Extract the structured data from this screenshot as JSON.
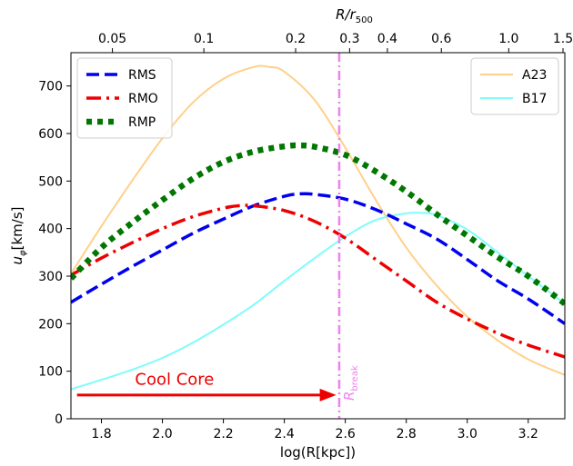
{
  "chart_data": {
    "type": "line",
    "xlabel": "log(R[kpc])",
    "ylabel": "u_φ[km/s]",
    "ylabel_main": "u",
    "ylabel_sub": "φ",
    "ylabel_unit": "[km/s]",
    "top_xlabel": "R/r_500",
    "top_xlabel_main": "R/r",
    "top_xlabel_sub": "500",
    "xlim": [
      1.7,
      3.32
    ],
    "ylim": [
      0,
      770
    ],
    "xticks": [
      1.8,
      2.0,
      2.2,
      2.4,
      2.6,
      2.8,
      3.0,
      3.2
    ],
    "xtick_labels": [
      "1.8",
      "2.0",
      "2.2",
      "2.4",
      "2.6",
      "2.8",
      "3.0",
      "3.2"
    ],
    "yticks": [
      0,
      100,
      200,
      300,
      400,
      500,
      600,
      700
    ],
    "ytick_labels": [
      "0",
      "100",
      "200",
      "300",
      "400",
      "500",
      "600",
      "700"
    ],
    "top_ticks": [
      {
        "label": "0.05",
        "x": 1.836
      },
      {
        "label": "0.1",
        "x": 2.136
      },
      {
        "label": "0.2",
        "x": 2.437
      },
      {
        "label": "0.3",
        "x": 2.614
      },
      {
        "label": "0.4",
        "x": 2.738
      },
      {
        "label": "0.6",
        "x": 2.915
      },
      {
        "label": "1.0",
        "x": 3.136
      },
      {
        "label": "1.5",
        "x": 3.314
      }
    ],
    "grid": false,
    "legend_left_position": "top-left",
    "legend_right_position": "top-right",
    "series": [
      {
        "name": "RMS",
        "color": "#0000ee",
        "style": "dashed",
        "group": "left",
        "x": [
          1.7,
          1.8,
          1.9,
          2.0,
          2.1,
          2.2,
          2.3,
          2.4,
          2.45,
          2.5,
          2.6,
          2.7,
          2.8,
          2.9,
          3.0,
          3.1,
          3.2,
          3.32
        ],
        "y": [
          245,
          283,
          320,
          355,
          390,
          420,
          448,
          468,
          473,
          472,
          462,
          440,
          410,
          378,
          335,
          290,
          252,
          200
        ]
      },
      {
        "name": "RMO",
        "color": "#ee0000",
        "style": "dashdot",
        "group": "left",
        "x": [
          1.7,
          1.8,
          1.9,
          2.0,
          2.1,
          2.2,
          2.25,
          2.3,
          2.4,
          2.5,
          2.6,
          2.7,
          2.8,
          2.9,
          3.0,
          3.1,
          3.2,
          3.32
        ],
        "y": [
          302,
          338,
          370,
          400,
          425,
          443,
          448,
          448,
          438,
          415,
          380,
          335,
          290,
          245,
          210,
          180,
          155,
          130
        ]
      },
      {
        "name": "RMP",
        "color": "#007700",
        "style": "dotted",
        "group": "left",
        "x": [
          1.7,
          1.8,
          1.9,
          2.0,
          2.1,
          2.2,
          2.3,
          2.4,
          2.45,
          2.5,
          2.6,
          2.7,
          2.8,
          2.9,
          3.0,
          3.1,
          3.2,
          3.32
        ],
        "y": [
          295,
          360,
          412,
          460,
          505,
          540,
          562,
          573,
          575,
          572,
          555,
          520,
          478,
          430,
          385,
          340,
          300,
          242
        ]
      },
      {
        "name": "A23",
        "color": "#ffd08a",
        "style": "solid",
        "group": "right",
        "x": [
          1.7,
          1.8,
          1.9,
          2.0,
          2.1,
          2.2,
          2.3,
          2.35,
          2.4,
          2.5,
          2.6,
          2.7,
          2.8,
          2.9,
          3.0,
          3.1,
          3.2,
          3.32
        ],
        "y": [
          305,
          405,
          500,
          590,
          665,
          715,
          740,
          740,
          730,
          670,
          570,
          460,
          360,
          280,
          215,
          165,
          125,
          92
        ]
      },
      {
        "name": "B17",
        "color": "#7ffcfc",
        "style": "solid",
        "group": "right",
        "x": [
          1.7,
          1.8,
          1.9,
          2.0,
          2.1,
          2.2,
          2.3,
          2.4,
          2.5,
          2.6,
          2.7,
          2.8,
          2.85,
          2.9,
          3.0,
          3.1,
          3.2,
          3.32
        ],
        "y": [
          62,
          82,
          103,
          128,
          160,
          198,
          240,
          290,
          338,
          383,
          418,
          432,
          433,
          428,
          398,
          350,
          300,
          242
        ]
      }
    ],
    "annotations": {
      "vline_x": 2.58,
      "vline_color": "#ee82ee",
      "vline_label": "R_break",
      "vline_label_main": "R",
      "vline_label_sub": "break",
      "arrow_from_x": 1.72,
      "arrow_to_x": 2.57,
      "arrow_y": 50,
      "arrow_color": "#ee0000",
      "arrow_text": "Cool Core",
      "arrow_text_x": 1.91,
      "arrow_text_y": 72
    }
  }
}
